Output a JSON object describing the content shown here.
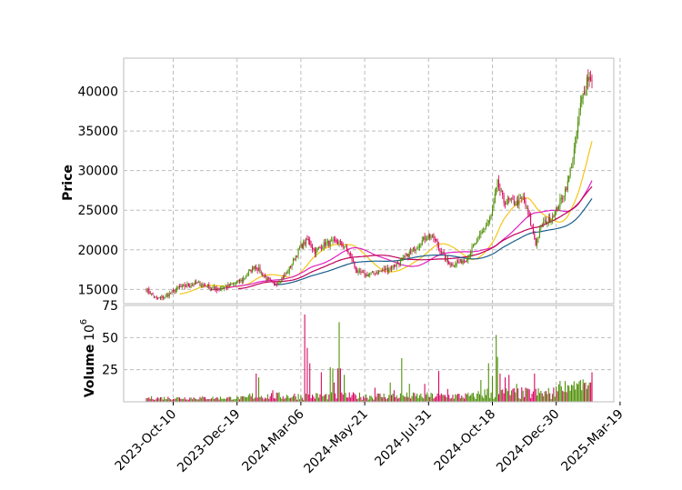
{
  "chart_data": [
    {
      "type": "candlestick",
      "ylabel": "Price",
      "x_tick_labels": [
        "2023-Oct-10",
        "2023-Dec-19",
        "2024-Mar-06",
        "2024-May-21",
        "2024-Jul-31",
        "2024-Oct-18",
        "2024-Dec-30",
        "2025-Mar-19"
      ],
      "y_ticks": [
        15000,
        20000,
        25000,
        30000,
        35000,
        40000
      ],
      "ylim": [
        13200,
        44200
      ],
      "grid": true,
      "close_anchors": [
        [
          0,
          15000
        ],
        [
          8,
          13800
        ],
        [
          15,
          14100
        ],
        [
          25,
          15200
        ],
        [
          40,
          15800
        ],
        [
          55,
          15000
        ],
        [
          65,
          15500
        ],
        [
          75,
          16200
        ],
        [
          85,
          18000
        ],
        [
          95,
          16200
        ],
        [
          100,
          15600
        ],
        [
          110,
          17000
        ],
        [
          120,
          20200
        ],
        [
          126,
          21300
        ],
        [
          132,
          19800
        ],
        [
          140,
          20800
        ],
        [
          150,
          21000
        ],
        [
          155,
          20500
        ],
        [
          160,
          19200
        ],
        [
          165,
          17200
        ],
        [
          172,
          16800
        ],
        [
          180,
          17200
        ],
        [
          190,
          17600
        ],
        [
          200,
          18600
        ],
        [
          210,
          20200
        ],
        [
          220,
          21800
        ],
        [
          225,
          21500
        ],
        [
          235,
          18600
        ],
        [
          240,
          18100
        ],
        [
          250,
          18800
        ],
        [
          260,
          21400
        ],
        [
          265,
          22800
        ],
        [
          270,
          24200
        ],
        [
          275,
          28400
        ],
        [
          280,
          26000
        ],
        [
          285,
          26200
        ],
        [
          290,
          25900
        ],
        [
          295,
          26500
        ],
        [
          300,
          24000
        ],
        [
          305,
          20800
        ],
        [
          310,
          23300
        ],
        [
          315,
          23800
        ],
        [
          320,
          24700
        ],
        [
          325,
          26400
        ],
        [
          330,
          28400
        ],
        [
          335,
          32500
        ],
        [
          340,
          38300
        ],
        [
          345,
          41600
        ],
        [
          349,
          41800
        ]
      ],
      "moving_averages": [
        {
          "color": "#f5c518",
          "start": 26
        },
        {
          "color": "#e020c0",
          "start": 50
        },
        {
          "color": "#c0005a",
          "start": 72
        },
        {
          "color": "#1a5e8a",
          "start": 100
        }
      ]
    },
    {
      "type": "bar",
      "ylabel": "Volume",
      "yscale_label": "10",
      "yscale_exp": "6",
      "y_ticks": [
        25,
        50,
        75
      ],
      "ylim": [
        0,
        75
      ],
      "grid": true,
      "spikes": [
        [
          86,
          22
        ],
        [
          88,
          19
        ],
        [
          99,
          9
        ],
        [
          124,
          68
        ],
        [
          126,
          42
        ],
        [
          128,
          30
        ],
        [
          137,
          23
        ],
        [
          144,
          27
        ],
        [
          146,
          26
        ],
        [
          147,
          15
        ],
        [
          150,
          26
        ],
        [
          151,
          62
        ],
        [
          152,
          26
        ],
        [
          155,
          21
        ],
        [
          179,
          11
        ],
        [
          191,
          15
        ],
        [
          194,
          9
        ],
        [
          200,
          34
        ],
        [
          206,
          14
        ],
        [
          218,
          14
        ],
        [
          229,
          24
        ],
        [
          236,
          10
        ],
        [
          262,
          17
        ],
        [
          268,
          30
        ],
        [
          271,
          20
        ],
        [
          274,
          52
        ],
        [
          275,
          35
        ],
        [
          277,
          22
        ],
        [
          281,
          19
        ],
        [
          284,
          21
        ],
        [
          290,
          14
        ],
        [
          304,
          22
        ],
        [
          325,
          12
        ],
        [
          335,
          16
        ],
        [
          340,
          17
        ],
        [
          344,
          15
        ],
        [
          349,
          23
        ]
      ]
    }
  ],
  "colors": {
    "up": "#4a8c00",
    "down": "#d6005a",
    "grid": "#bdbdbd",
    "frame": "#bebebe"
  }
}
